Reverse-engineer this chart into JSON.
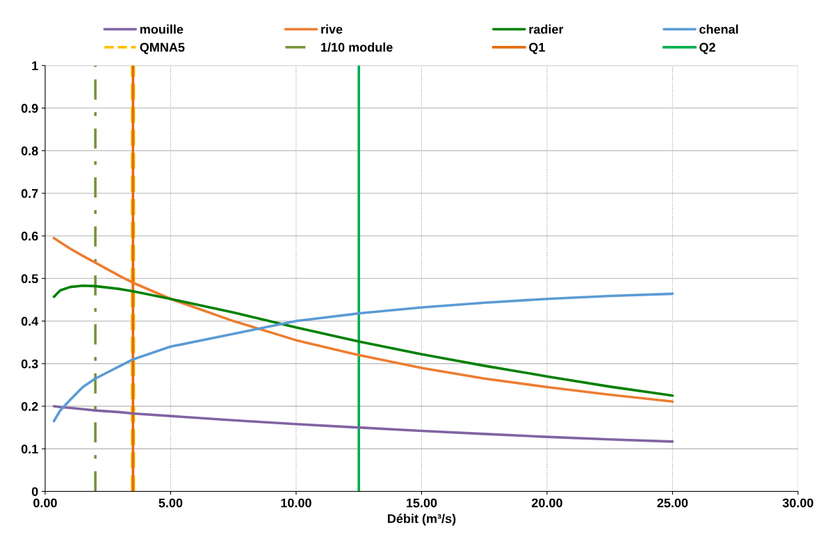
{
  "chart_data": {
    "type": "line",
    "xlabel": "Débit (m³/s)",
    "x": [
      0.35,
      0.6,
      1,
      1.5,
      2,
      3,
      3.5,
      5,
      7.5,
      10,
      12.5,
      15,
      17.5,
      20,
      22.5,
      25
    ],
    "series": [
      {
        "name": "mouille",
        "color": "#8064a2",
        "values": [
          0.2,
          0.198,
          0.196,
          0.193,
          0.19,
          0.186,
          0.183,
          0.177,
          0.167,
          0.158,
          0.15,
          0.142,
          0.135,
          0.128,
          0.122,
          0.117
        ]
      },
      {
        "name": "rive",
        "color": "#ed7d31",
        "values": [
          0.595,
          0.585,
          0.57,
          0.553,
          0.537,
          0.505,
          0.49,
          0.452,
          0.4,
          0.355,
          0.32,
          0.29,
          0.265,
          0.245,
          0.227,
          0.211
        ]
      },
      {
        "name": "radier",
        "color": "#008000",
        "values": [
          0.457,
          0.472,
          0.48,
          0.483,
          0.482,
          0.475,
          0.47,
          0.452,
          0.42,
          0.385,
          0.352,
          0.322,
          0.295,
          0.27,
          0.246,
          0.225
        ]
      },
      {
        "name": "chenal",
        "color": "#5b9bd5",
        "values": [
          0.165,
          0.19,
          0.215,
          0.245,
          0.265,
          0.295,
          0.31,
          0.34,
          0.37,
          0.4,
          0.418,
          0.432,
          0.443,
          0.452,
          0.459,
          0.464
        ]
      }
    ],
    "ref_lines": [
      {
        "axis": "x",
        "value": 3.5,
        "label": "QMNA5",
        "color": "#ffc000",
        "line_style": "dashed"
      },
      {
        "axis": "x",
        "value": 2,
        "label": "1/10 module",
        "color": "#77933c",
        "line_style": "dashdot"
      },
      {
        "axis": "x",
        "value": 3.5,
        "label": "Q1",
        "color": "#e46c0a",
        "line_style": "solid"
      },
      {
        "axis": "x",
        "value": 12.5,
        "label": "Q2",
        "color": "#00b050",
        "line_style": "solid"
      }
    ],
    "xlim": [
      0,
      30
    ],
    "xticks": [
      {
        "value": 0,
        "label": "0.00"
      },
      {
        "value": 5,
        "label": "5.00"
      },
      {
        "value": 10,
        "label": "10.00"
      },
      {
        "value": 15,
        "label": "15.00"
      },
      {
        "value": 20,
        "label": "20.00"
      },
      {
        "value": 25,
        "label": "25.00"
      },
      {
        "value": 30,
        "label": "30.00"
      }
    ],
    "ylim": [
      0,
      1
    ],
    "yticks": [
      0,
      0.1,
      0.2,
      0.3,
      0.4,
      0.5,
      0.6,
      0.7,
      0.8,
      0.9,
      1
    ],
    "grid": true,
    "legend": "top",
    "marker": "none",
    "line_style": "solid"
  }
}
